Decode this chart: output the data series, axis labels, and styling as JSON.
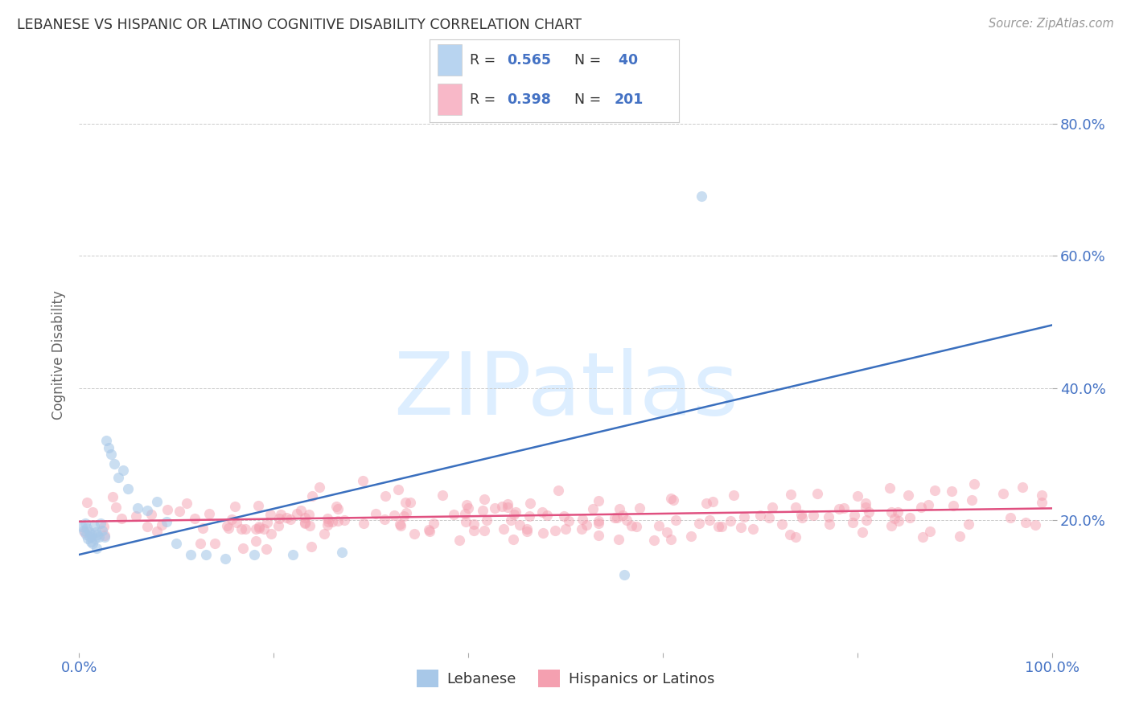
{
  "title": "LEBANESE VS HISPANIC OR LATINO COGNITIVE DISABILITY CORRELATION CHART",
  "source": "Source: ZipAtlas.com",
  "ylabel": "Cognitive Disability",
  "watermark": "ZIPatlas",
  "legend_label1": "Lebanese",
  "legend_label2": "Hispanics or Latinos",
  "blue_color": "#a8c8e8",
  "pink_color": "#f4a0b0",
  "blue_line_color": "#3a6fbe",
  "pink_line_color": "#e05080",
  "title_color": "#333333",
  "axis_tick_color": "#4472c4",
  "background_color": "#ffffff",
  "watermark_color": "#ddeeff",
  "legend_blue_fill": "#b8d4f0",
  "legend_pink_fill": "#f8b8c8",
  "xlim": [
    0.0,
    1.0
  ],
  "ylim": [
    0.0,
    0.9
  ],
  "yticks": [
    0.2,
    0.4,
    0.6,
    0.8
  ],
  "ytick_labels": [
    "20.0%",
    "40.0%",
    "60.0%",
    "80.0%"
  ],
  "xticks": [
    0.0,
    0.2,
    0.4,
    0.6,
    0.8,
    1.0
  ],
  "xtick_labels": [
    "0.0%",
    "",
    "",
    "",
    "",
    "100.0%"
  ],
  "blue_points_x": [
    0.003,
    0.005,
    0.006,
    0.007,
    0.008,
    0.009,
    0.01,
    0.011,
    0.012,
    0.013,
    0.014,
    0.015,
    0.016,
    0.017,
    0.018,
    0.019,
    0.02,
    0.022,
    0.024,
    0.026,
    0.028,
    0.03,
    0.033,
    0.036,
    0.04,
    0.045,
    0.05,
    0.06,
    0.07,
    0.08,
    0.09,
    0.1,
    0.115,
    0.13,
    0.15,
    0.18,
    0.22,
    0.27,
    0.56,
    0.64
  ],
  "blue_points_y": [
    0.19,
    0.185,
    0.195,
    0.178,
    0.188,
    0.172,
    0.182,
    0.175,
    0.168,
    0.178,
    0.165,
    0.192,
    0.172,
    0.182,
    0.158,
    0.178,
    0.175,
    0.195,
    0.185,
    0.175,
    0.32,
    0.31,
    0.3,
    0.285,
    0.265,
    0.275,
    0.248,
    0.218,
    0.215,
    0.228,
    0.198,
    0.165,
    0.148,
    0.148,
    0.142,
    0.148,
    0.148,
    0.152,
    0.118,
    0.69
  ],
  "blue_line_x": [
    0.0,
    1.0
  ],
  "blue_line_y": [
    0.148,
    0.495
  ],
  "pink_line_x": [
    0.0,
    1.0
  ],
  "pink_line_y": [
    0.198,
    0.218
  ],
  "dpi": 100,
  "figsize": [
    14.06,
    8.92
  ]
}
